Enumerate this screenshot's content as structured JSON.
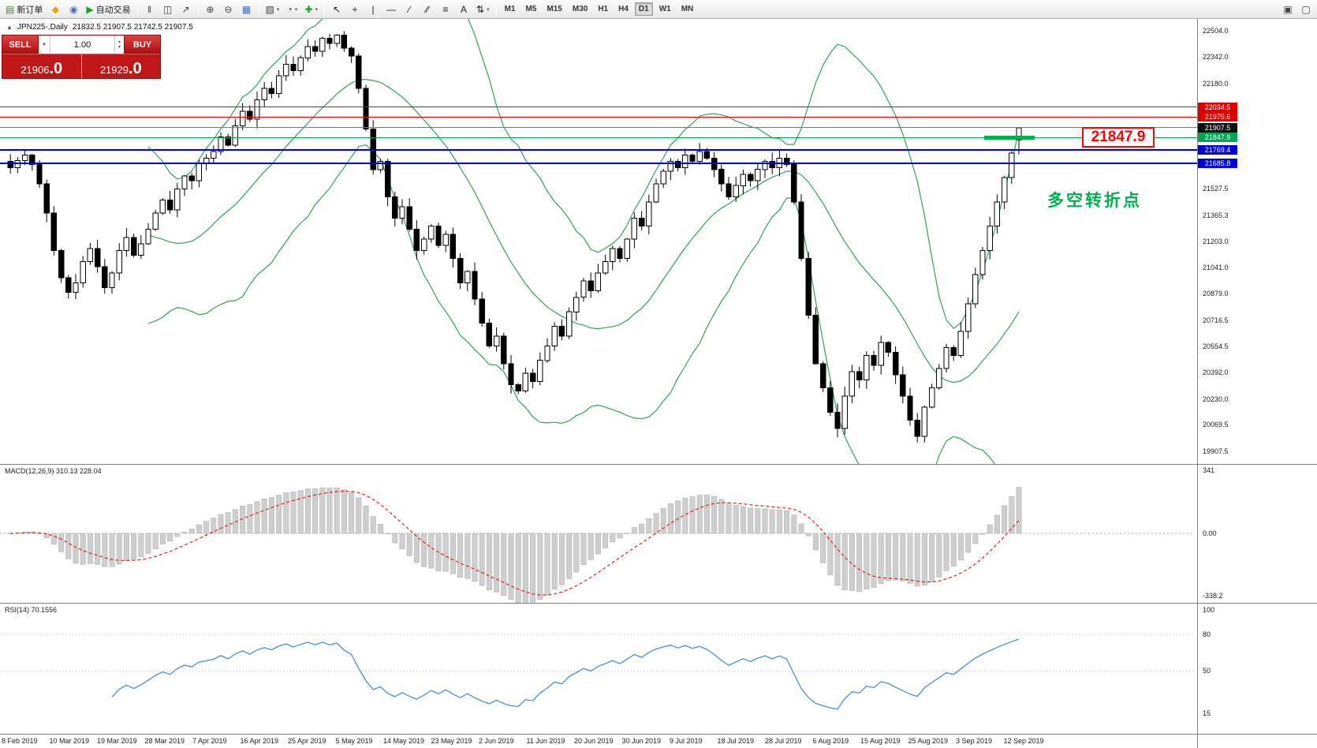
{
  "toolbar": {
    "items": [
      {
        "name": "new-order-button",
        "glyph": "▤",
        "glyph_color": "#4a7f3f",
        "label": "新订单"
      },
      {
        "name": "metaeditor-button",
        "glyph": "◆",
        "glyph_color": "#e0a800"
      },
      {
        "name": "market-watch-button",
        "glyph": "◉",
        "glyph_color": "#3a6fc4"
      },
      {
        "name": "autotrading-button",
        "glyph": "▶",
        "glyph_color": "#1fa11f",
        "label": "自动交易"
      },
      {
        "sep": true
      },
      {
        "name": "ohlc-bars-button",
        "glyph": "‖",
        "glyph_color": "#444"
      },
      {
        "name": "candlestick-chart-button",
        "glyph": "◫",
        "glyph_color": "#444"
      },
      {
        "name": "line-chart-button",
        "glyph": "↗",
        "glyph_color": "#444"
      },
      {
        "sep": true
      },
      {
        "name": "zoom-in-button",
        "glyph": "⊕",
        "glyph_color": "#444"
      },
      {
        "name": "zoom-out-button",
        "glyph": "⊖",
        "glyph_color": "#444"
      },
      {
        "name": "tile-windows-button",
        "glyph": "▦",
        "glyph_color": "#3a6fc4"
      },
      {
        "sep": true
      },
      {
        "name": "new-chart-button",
        "glyph": "▧",
        "glyph_color": "#444",
        "caret": true
      },
      {
        "name": "profiles-button",
        "glyph": "◔",
        "glyph_color": "#444",
        "caret": true
      },
      {
        "name": "indicators-button",
        "glyph": "✚",
        "glyph_color": "#1fa11f",
        "caret": true
      },
      {
        "sep": true
      },
      {
        "name": "cursor-button",
        "glyph": "↖",
        "glyph_color": "#222"
      },
      {
        "name": "crosshair-button",
        "glyph": "+",
        "glyph_color": "#222"
      },
      {
        "name": "vertical-line-button",
        "glyph": "|",
        "glyph_color": "#222"
      },
      {
        "name": "horizontal-line-button",
        "glyph": "—",
        "glyph_color": "#222"
      },
      {
        "name": "trendline-button",
        "glyph": "∕",
        "glyph_color": "#222"
      },
      {
        "name": "channel-button",
        "glyph": "∕∕",
        "glyph_color": "#222"
      },
      {
        "name": "fibonacci-button",
        "glyph": "≡",
        "glyph_color": "#222"
      },
      {
        "name": "text-button",
        "glyph": "A",
        "glyph_color": "#222"
      },
      {
        "name": "arrows-button",
        "glyph": "⇅",
        "glyph_color": "#222",
        "caret": true
      },
      {
        "sep": true
      }
    ],
    "timeframes": [
      "M1",
      "M5",
      "M15",
      "M30",
      "H1",
      "H4",
      "D1",
      "W1",
      "MN"
    ],
    "active_timeframe": "D1",
    "right_items": [
      {
        "name": "window-cascade-button",
        "glyph": "▣",
        "glyph_color": "#444"
      },
      {
        "name": "window-new-button",
        "glyph": "▢",
        "glyph_color": "#444"
      }
    ]
  },
  "chart": {
    "title_icon": "▲",
    "title_symbol": "JPN225-,Daily",
    "title_ohlc": "21832.5 21907.5 21742.5 21907.5"
  },
  "one_click": {
    "sell_label": "SELL",
    "buy_label": "BUY",
    "caret": "▼",
    "volume": "1.00",
    "vol_up": "▲",
    "vol_down": "▼",
    "sell_price": "21906",
    "sell_price_big": ".0",
    "buy_price": "21929",
    "buy_price_big": ".0"
  },
  "price_scale": {
    "ticks": [
      "22504.0",
      "22342.0",
      "22180.0",
      "21527.5",
      "21365.3",
      "21203.0",
      "21041.0",
      "20879.0",
      "20716.5",
      "20554.5",
      "20392.0",
      "20230.0",
      "20069.5",
      "19907.5"
    ],
    "badges": [
      {
        "text": "22034.5",
        "bg": "#e00000"
      },
      {
        "text": "21975.6",
        "bg": "#e00000"
      },
      {
        "text": "21907.5",
        "bg": "#101010"
      },
      {
        "text": "21847.9",
        "bg": "#00a651"
      },
      {
        "text": "21769.4",
        "bg": "#0000d8"
      },
      {
        "text": "21685.8",
        "bg": "#0000d8"
      }
    ]
  },
  "hlines": [
    {
      "price": 22034.5,
      "color": "#f00000",
      "width": 1
    },
    {
      "price": 21975.6,
      "color": "#f00000",
      "width": 1
    },
    {
      "price": 21907.5,
      "color": "#33a06f",
      "width": 1
    },
    {
      "price": 21847.9,
      "color": "#00a651",
      "width": 1
    },
    {
      "price": 21769.4,
      "color": "#0000e8",
      "width": 2
    },
    {
      "price": 21685.8,
      "color": "#0000e8",
      "width": 2
    }
  ],
  "annotations": {
    "price_callout": {
      "text": "21847.9",
      "price": 21847.9,
      "color": "#ff0000"
    },
    "highlight_segment": {
      "price": 21847.9,
      "color": "#00b050"
    },
    "turning_point": {
      "text": "多空转折点",
      "color": "#00b050"
    }
  },
  "macd_panel": {
    "label": "MACD(12,26,9) 310.13 228.04",
    "scale": [
      {
        "text": "341",
        "value": 341
      },
      {
        "text": "0.00",
        "value": 0
      },
      {
        "text": "-338.2",
        "value": -338.2
      }
    ]
  },
  "rsi_panel": {
    "label": "RSI(14) 70.1556",
    "scale": [
      {
        "text": "100",
        "value": 100
      },
      {
        "text": "80",
        "value": 80
      },
      {
        "text": "50",
        "value": 50
      },
      {
        "text": "15",
        "value": 15
      }
    ],
    "level_values": [
      80,
      50
    ]
  },
  "x_axis": {
    "labels": [
      "8 Feb 2019",
      "10 Mar 2019",
      "19 Mar 2019",
      "28 Mar 2019",
      "7 Apr 2019",
      "16 Apr 2019",
      "25 Apr 2019",
      "5 May 2019",
      "14 May 2019",
      "23 May 2019",
      "2 Jun 2019",
      "11 Jun 2019",
      "20 Jun 2019",
      "30 Jun 2019",
      "9 Jul 2019",
      "18 Jul 2019",
      "28 Jul 2019",
      "6 Aug 2019",
      "15 Aug 2019",
      "25 Aug 2019",
      "3 Sep 2019",
      "12 Sep 2019"
    ]
  },
  "chart_data": {
    "type": "candlestick",
    "symbol": "JPN225-",
    "timeframe": "Daily",
    "price_range": [
      19830,
      22580
    ],
    "closes": [
      21660,
      21705,
      21740,
      21680,
      21560,
      21380,
      21150,
      20980,
      20890,
      20950,
      21080,
      21160,
      21050,
      20920,
      21010,
      21150,
      21230,
      21120,
      21190,
      21280,
      21380,
      21460,
      21400,
      21530,
      21610,
      21580,
      21690,
      21720,
      21760,
      21850,
      21800,
      21920,
      22010,
      21960,
      22080,
      22150,
      22120,
      22230,
      22300,
      22260,
      22340,
      22410,
      22380,
      22460,
      22430,
      22480,
      22400,
      22350,
      22150,
      21900,
      21650,
      21700,
      21480,
      21350,
      21420,
      21280,
      21150,
      21220,
      21300,
      21180,
      21250,
      21100,
      20950,
      21020,
      20850,
      20700,
      20560,
      20620,
      20450,
      20320,
      20280,
      20390,
      20340,
      20470,
      20560,
      20680,
      20620,
      20770,
      20860,
      20960,
      20900,
      21010,
      21080,
      21160,
      21100,
      21220,
      21350,
      21300,
      21450,
      21560,
      21640,
      21700,
      21660,
      21740,
      21700,
      21760,
      21720,
      21650,
      21560,
      21480,
      21550,
      21620,
      21580,
      21650,
      21700,
      21660,
      21720,
      21680,
      21450,
      21100,
      20750,
      20450,
      20300,
      20150,
      20050,
      20250,
      20400,
      20350,
      20500,
      20440,
      20580,
      20520,
      20380,
      20250,
      20100,
      20000,
      20180,
      20300,
      20420,
      20550,
      20500,
      20650,
      20820,
      21000,
      21150,
      21300,
      21450,
      21600,
      21750,
      21907.5
    ],
    "last_ohlc": [
      21832.5,
      21907.5,
      21742.5,
      21907.5
    ],
    "indicators": [
      {
        "name": "Bollinger Bands",
        "window": 20,
        "deviation": 2
      },
      {
        "name": "MACD",
        "params": [
          12,
          26,
          9
        ],
        "current_values": "310.13 228.04"
      },
      {
        "name": "RSI",
        "params": [
          14
        ],
        "current_value": "70.1556"
      }
    ],
    "colors": {
      "up": "#ffffff",
      "down": "#000000",
      "border": "#000000",
      "bollinger": "#35a05f",
      "macd_hist": "#cfcfcf",
      "macd_hist_border": "#b5b5b5",
      "macd_signal": "#e02020",
      "rsi": "#4a8fd4"
    }
  }
}
